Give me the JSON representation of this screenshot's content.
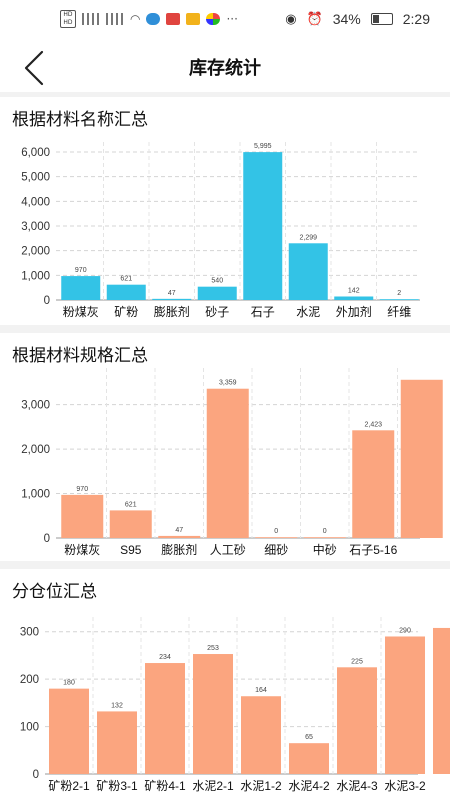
{
  "status_bar": {
    "left_icons": [
      "hd-icon",
      "signal-4g-icon",
      "signal-5g-icon",
      "wifi-icon",
      "app-icon-blue",
      "app-icon-red",
      "app-icon-yellow",
      "app-icon-colorful",
      "more-icon"
    ],
    "battery": "34%",
    "time": "2:29"
  },
  "header": {
    "title": "库存统计"
  },
  "sections": [
    {
      "title": "根据材料名称汇总"
    },
    {
      "title": "根据材料规格汇总"
    },
    {
      "title": "分仓位汇总"
    }
  ],
  "chart_data": [
    {
      "type": "bar",
      "color": "#33c3e6",
      "categories": [
        "粉煤灰",
        "矿粉",
        "膨胀剂",
        "砂子",
        "石子",
        "水泥",
        "外加剂",
        "纤维"
      ],
      "values": [
        970,
        621,
        47,
        540,
        5995,
        2299,
        142,
        2
      ],
      "labels": [
        "970",
        "621",
        "47",
        "540",
        "5,995",
        "2,299",
        "142",
        "2"
      ],
      "ylim": [
        0,
        6000
      ],
      "yticks": [
        "0",
        "1,000",
        "2,000",
        "3,000",
        "4,000",
        "5,000",
        "6,000"
      ],
      "grid": true
    },
    {
      "type": "bar",
      "color": "#fba57f",
      "categories": [
        "粉煤灰",
        "S95",
        "膨胀剂",
        "人工砂",
        "细砂",
        "中砂",
        "石子5-16"
      ],
      "values": [
        970,
        621,
        47,
        3359,
        0,
        0,
        2423,
        3560
      ],
      "labels": [
        "970",
        "621",
        "47",
        "3,359",
        "0",
        "0",
        "2,423",
        ""
      ],
      "ylim": [
        0,
        3600
      ],
      "yticks": [
        "0",
        "1,000",
        "2,000",
        "3,000"
      ],
      "grid": true
    },
    {
      "type": "bar",
      "color": "#fba57f",
      "categories": [
        "矿粉2-1",
        "矿粉3-1",
        "矿粉4-1",
        "水泥2-1",
        "水泥1-2",
        "水泥4-2",
        "水泥4-3",
        "水泥3-2"
      ],
      "values": [
        180,
        132,
        234,
        253,
        164,
        65,
        225,
        290,
        308
      ],
      "labels": [
        "180",
        "132",
        "234",
        "253",
        "164",
        "65",
        "225",
        "290",
        ""
      ],
      "ylim": [
        0,
        310
      ],
      "yticks": [
        "0",
        "100",
        "200",
        "300"
      ],
      "grid": true
    }
  ]
}
